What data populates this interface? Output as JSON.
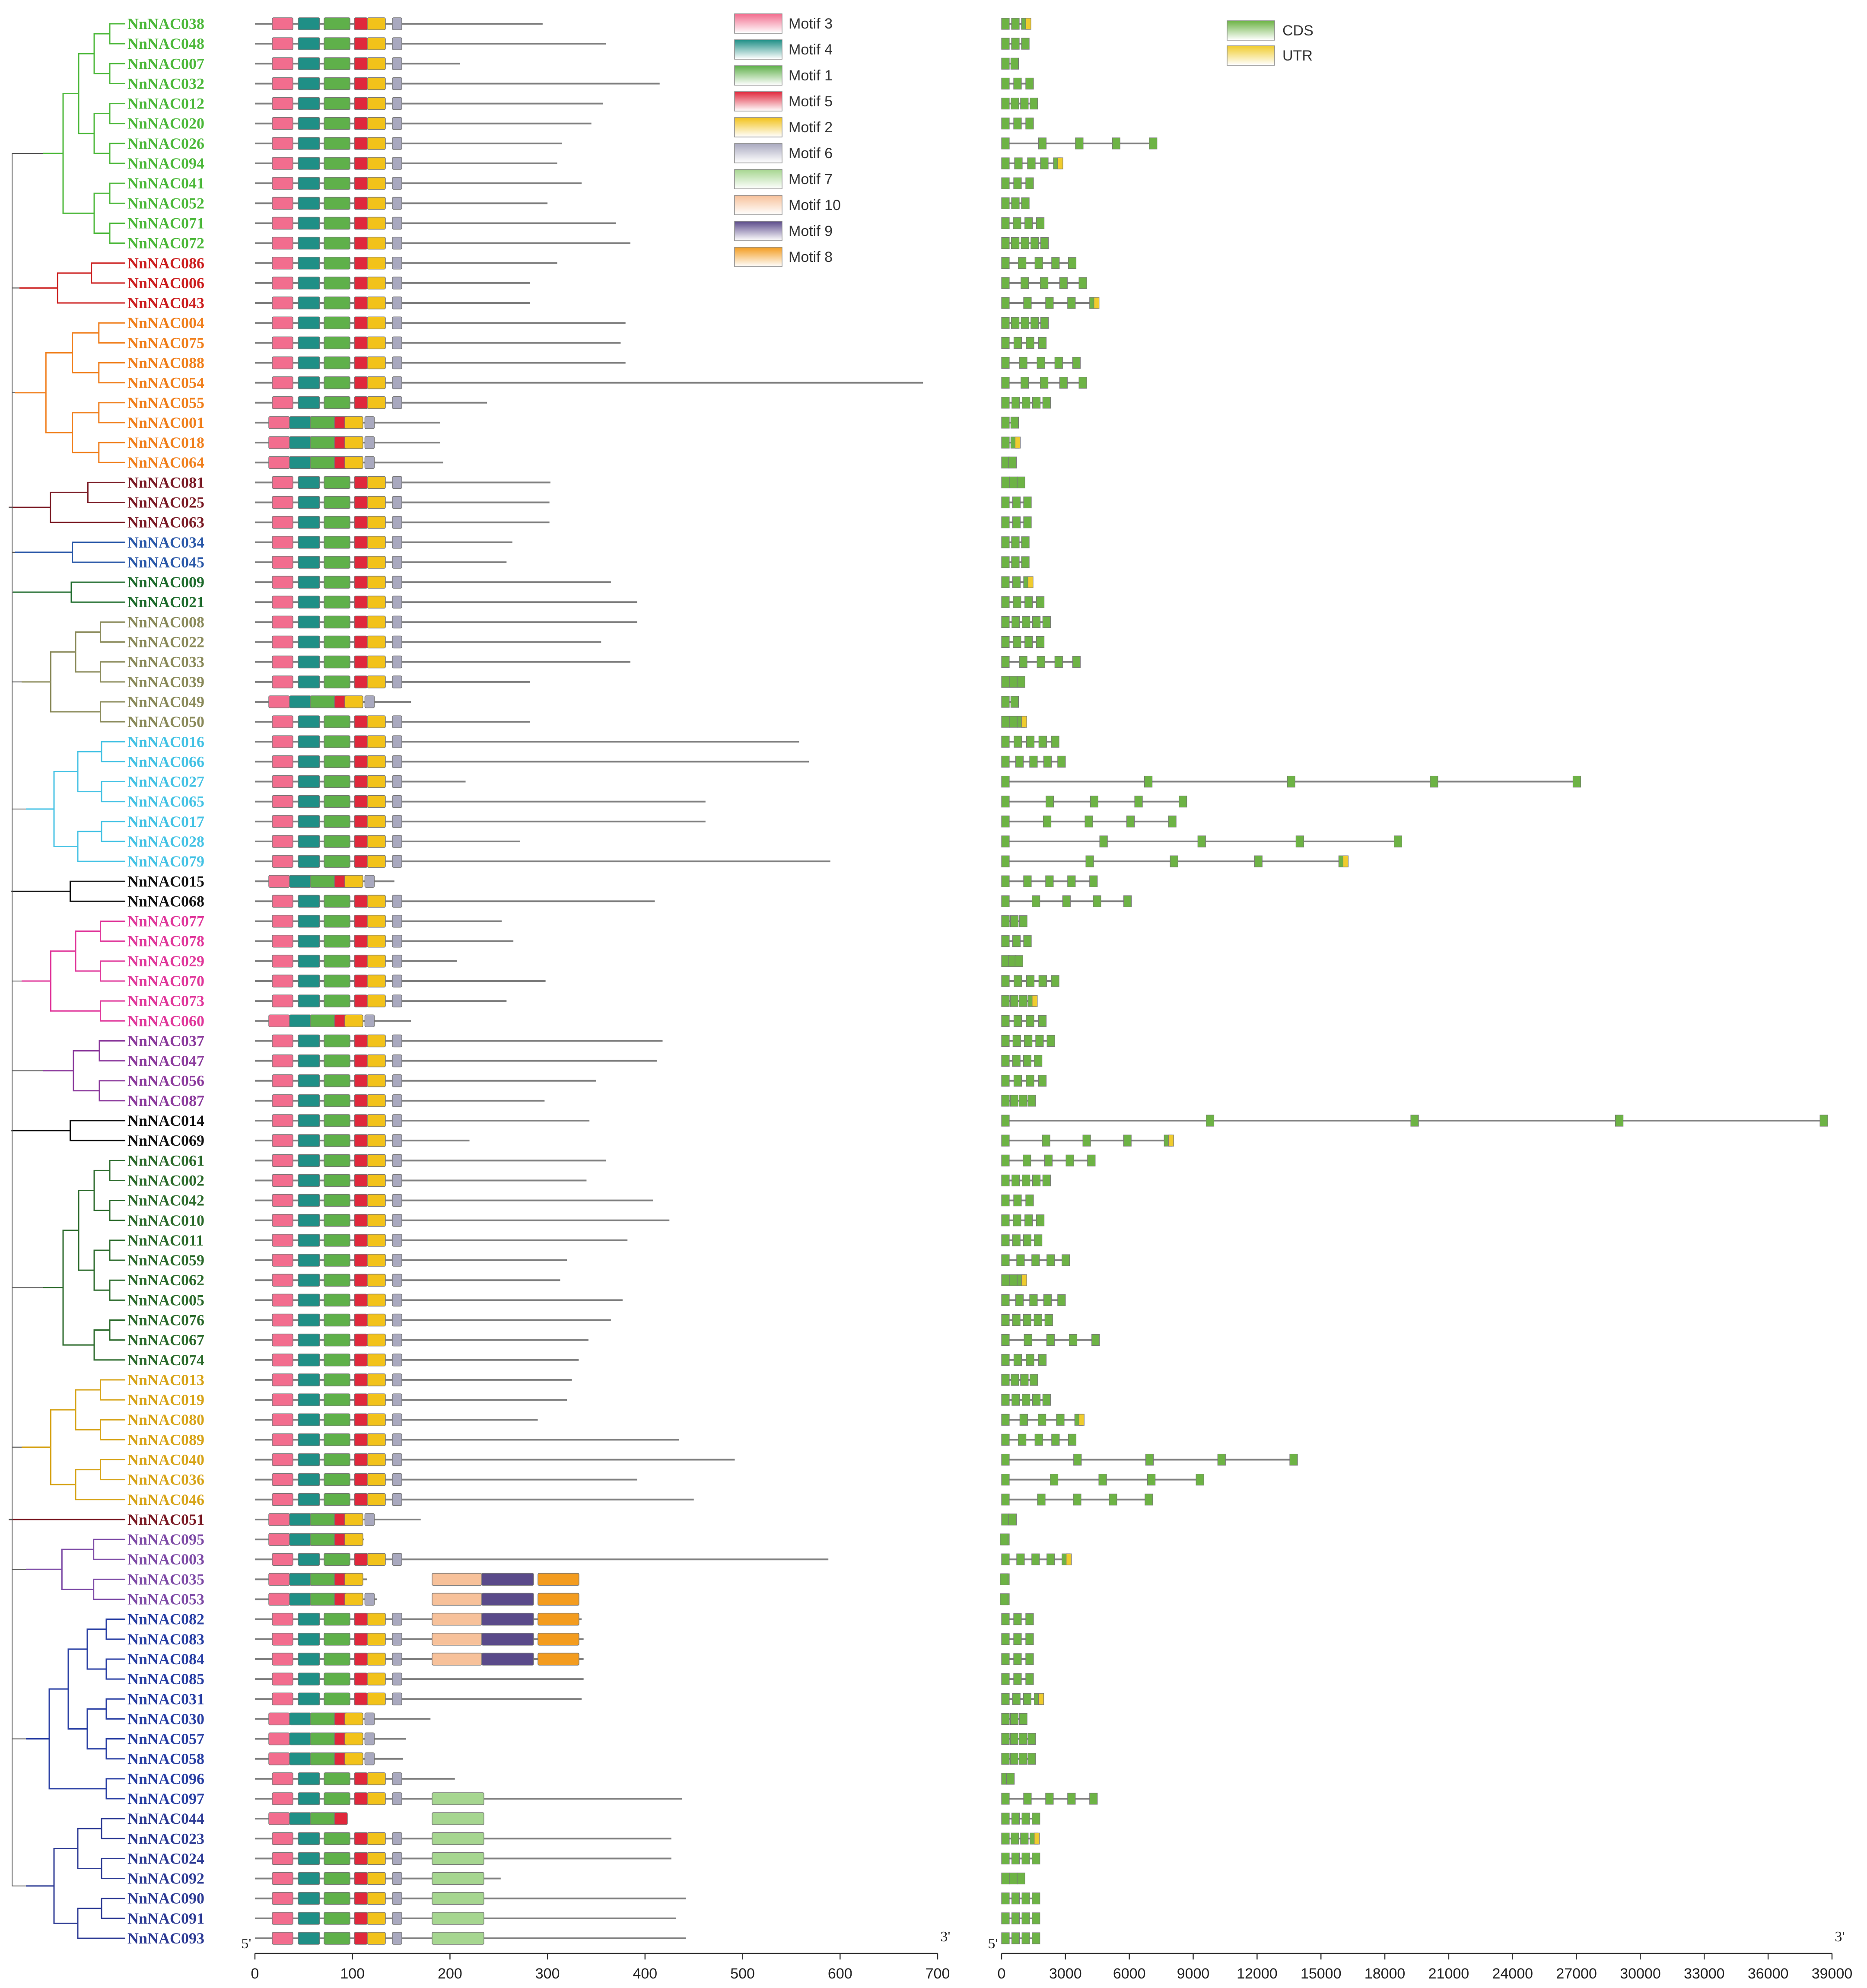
{
  "genes": [
    {
      "name": "NnNAC038",
      "clade": "c1"
    },
    {
      "name": "NnNAC048",
      "clade": "c1"
    },
    {
      "name": "NnNAC007",
      "clade": "c1"
    },
    {
      "name": "NnNAC032",
      "clade": "c1"
    },
    {
      "name": "NnNAC012",
      "clade": "c1"
    },
    {
      "name": "NnNAC020",
      "clade": "c1"
    },
    {
      "name": "NnNAC026",
      "clade": "c1"
    },
    {
      "name": "NnNAC094",
      "clade": "c1"
    },
    {
      "name": "NnNAC041",
      "clade": "c1"
    },
    {
      "name": "NnNAC052",
      "clade": "c1"
    },
    {
      "name": "NnNAC071",
      "clade": "c1"
    },
    {
      "name": "NnNAC072",
      "clade": "c1"
    },
    {
      "name": "NnNAC086",
      "clade": "c2"
    },
    {
      "name": "NnNAC006",
      "clade": "c2"
    },
    {
      "name": "NnNAC043",
      "clade": "c2"
    },
    {
      "name": "NnNAC004",
      "clade": "c3"
    },
    {
      "name": "NnNAC075",
      "clade": "c3"
    },
    {
      "name": "NnNAC088",
      "clade": "c3"
    },
    {
      "name": "NnNAC054",
      "clade": "c3"
    },
    {
      "name": "NnNAC055",
      "clade": "c3"
    },
    {
      "name": "NnNAC001",
      "clade": "c3"
    },
    {
      "name": "NnNAC018",
      "clade": "c3"
    },
    {
      "name": "NnNAC064",
      "clade": "c3"
    },
    {
      "name": "NnNAC081",
      "clade": "c4"
    },
    {
      "name": "NnNAC025",
      "clade": "c4"
    },
    {
      "name": "NnNAC063",
      "clade": "c4"
    },
    {
      "name": "NnNAC034",
      "clade": "c5"
    },
    {
      "name": "NnNAC045",
      "clade": "c5"
    },
    {
      "name": "NnNAC009",
      "clade": "c6"
    },
    {
      "name": "NnNAC021",
      "clade": "c6"
    },
    {
      "name": "NnNAC008",
      "clade": "c7"
    },
    {
      "name": "NnNAC022",
      "clade": "c7"
    },
    {
      "name": "NnNAC033",
      "clade": "c7"
    },
    {
      "name": "NnNAC039",
      "clade": "c7"
    },
    {
      "name": "NnNAC049",
      "clade": "c7"
    },
    {
      "name": "NnNAC050",
      "clade": "c7"
    },
    {
      "name": "NnNAC016",
      "clade": "c8"
    },
    {
      "name": "NnNAC066",
      "clade": "c8"
    },
    {
      "name": "NnNAC027",
      "clade": "c8"
    },
    {
      "name": "NnNAC065",
      "clade": "c8"
    },
    {
      "name": "NnNAC017",
      "clade": "c8"
    },
    {
      "name": "NnNAC028",
      "clade": "c8"
    },
    {
      "name": "NnNAC079",
      "clade": "c8"
    },
    {
      "name": "NnNAC015",
      "clade": "c9"
    },
    {
      "name": "NnNAC068",
      "clade": "c9"
    },
    {
      "name": "NnNAC077",
      "clade": "c10"
    },
    {
      "name": "NnNAC078",
      "clade": "c10"
    },
    {
      "name": "NnNAC029",
      "clade": "c10"
    },
    {
      "name": "NnNAC070",
      "clade": "c10"
    },
    {
      "name": "NnNAC073",
      "clade": "c10"
    },
    {
      "name": "NnNAC060",
      "clade": "c10"
    },
    {
      "name": "NnNAC037",
      "clade": "c11"
    },
    {
      "name": "NnNAC047",
      "clade": "c11"
    },
    {
      "name": "NnNAC056",
      "clade": "c11"
    },
    {
      "name": "NnNAC087",
      "clade": "c11"
    },
    {
      "name": "NnNAC014",
      "clade": "c9"
    },
    {
      "name": "NnNAC069",
      "clade": "c9"
    },
    {
      "name": "NnNAC061",
      "clade": "c12"
    },
    {
      "name": "NnNAC002",
      "clade": "c12"
    },
    {
      "name": "NnNAC042",
      "clade": "c12"
    },
    {
      "name": "NnNAC010",
      "clade": "c12"
    },
    {
      "name": "NnNAC011",
      "clade": "c12"
    },
    {
      "name": "NnNAC059",
      "clade": "c12"
    },
    {
      "name": "NnNAC062",
      "clade": "c12"
    },
    {
      "name": "NnNAC005",
      "clade": "c12"
    },
    {
      "name": "NnNAC076",
      "clade": "c12"
    },
    {
      "name": "NnNAC067",
      "clade": "c12"
    },
    {
      "name": "NnNAC074",
      "clade": "c12"
    },
    {
      "name": "NnNAC013",
      "clade": "c13"
    },
    {
      "name": "NnNAC019",
      "clade": "c13"
    },
    {
      "name": "NnNAC080",
      "clade": "c13"
    },
    {
      "name": "NnNAC089",
      "clade": "c13"
    },
    {
      "name": "NnNAC040",
      "clade": "c13"
    },
    {
      "name": "NnNAC036",
      "clade": "c13"
    },
    {
      "name": "NnNAC046",
      "clade": "c13"
    },
    {
      "name": "NnNAC051",
      "clade": "c4"
    },
    {
      "name": "NnNAC095",
      "clade": "c14"
    },
    {
      "name": "NnNAC003",
      "clade": "c14"
    },
    {
      "name": "NnNAC035",
      "clade": "c14"
    },
    {
      "name": "NnNAC053",
      "clade": "c14"
    },
    {
      "name": "NnNAC082",
      "clade": "c15"
    },
    {
      "name": "NnNAC083",
      "clade": "c15"
    },
    {
      "name": "NnNAC084",
      "clade": "c15"
    },
    {
      "name": "NnNAC085",
      "clade": "c15"
    },
    {
      "name": "NnNAC031",
      "clade": "c15"
    },
    {
      "name": "NnNAC030",
      "clade": "c15"
    },
    {
      "name": "NnNAC057",
      "clade": "c15"
    },
    {
      "name": "NnNAC058",
      "clade": "c15"
    },
    {
      "name": "NnNAC096",
      "clade": "c15"
    },
    {
      "name": "NnNAC097",
      "clade": "c15"
    },
    {
      "name": "NnNAC044",
      "clade": "c16"
    },
    {
      "name": "NnNAC023",
      "clade": "c16"
    },
    {
      "name": "NnNAC024",
      "clade": "c16"
    },
    {
      "name": "NnNAC092",
      "clade": "c16"
    },
    {
      "name": "NnNAC090",
      "clade": "c16"
    },
    {
      "name": "NnNAC091",
      "clade": "c16"
    },
    {
      "name": "NnNAC093",
      "clade": "c16"
    }
  ],
  "clade_colors": {
    "c1": "#4cb83a",
    "c2": "#cc1f1f",
    "c3": "#f07f1c",
    "c4": "#7a1a24",
    "c5": "#2a58a8",
    "c6": "#1e6b2c",
    "c7": "#8a8a5a",
    "c8": "#44c2e4",
    "c9": "#111111",
    "c10": "#e0379a",
    "c11": "#8b3a9c",
    "c12": "#2b6a2b",
    "c13": "#d6a317",
    "c14": "#7d4aa6",
    "c15": "#283ea3",
    "c16": "#2c3a94"
  },
  "motif_legend": [
    {
      "label": "Motif 3",
      "color": "#f26d8e"
    },
    {
      "label": "Motif 4",
      "color": "#1f8f86"
    },
    {
      "label": "Motif 1",
      "color": "#5fb04a"
    },
    {
      "label": "Motif 5",
      "color": "#e0283c"
    },
    {
      "label": "Motif 2",
      "color": "#f2c21a"
    },
    {
      "label": "Motif 6",
      "color": "#a9a9bf"
    },
    {
      "label": "Motif 7",
      "color": "#a6d690"
    },
    {
      "label": "Motif 10",
      "color": "#f7c19a"
    },
    {
      "label": "Motif 9",
      "color": "#5a4a8a"
    },
    {
      "label": "Motif 8",
      "color": "#f39c1f"
    }
  ],
  "gene_legend": [
    {
      "label": "CDS",
      "color": "#6db345"
    },
    {
      "label": "UTR",
      "color": "#f0cc2e"
    }
  ],
  "protein_axis": {
    "max": 700,
    "ticks": [
      "0",
      "100",
      "200",
      "300",
      "400",
      "500",
      "600",
      "700"
    ],
    "start_label": "5'",
    "end_label": "3'"
  },
  "gene_axis": {
    "max": 39000,
    "ticks": [
      "0",
      "3000",
      "6000",
      "9000",
      "12000",
      "15000",
      "18000",
      "21000",
      "24000",
      "27000",
      "30000",
      "33000",
      "36000",
      "39000"
    ],
    "start_label": "5'",
    "end_label": "3'"
  },
  "protein_lengths": [
    295,
    360,
    210,
    415,
    357,
    345,
    315,
    310,
    335,
    300,
    370,
    385,
    310,
    282,
    282,
    380,
    375,
    380,
    685,
    238,
    190,
    190,
    193,
    303,
    302,
    302,
    264,
    258,
    365,
    392,
    392,
    355,
    385,
    282,
    160,
    282,
    558,
    568,
    216,
    462,
    462,
    272,
    590,
    143,
    410,
    253,
    265,
    207,
    298,
    258,
    160,
    418,
    412,
    350,
    297,
    343,
    220,
    360,
    340,
    408,
    425,
    382,
    320,
    313,
    377,
    365,
    342,
    332,
    325,
    320,
    290,
    435,
    492,
    392,
    450,
    170,
    112,
    588,
    115,
    125,
    335,
    337,
    337,
    337,
    335,
    180,
    155,
    152,
    205,
    438,
    95,
    427,
    427,
    252,
    442,
    432,
    442
  ],
  "gene_lengths": [
    1300,
    1300,
    800,
    1500,
    1700,
    1500,
    7300,
    2800,
    1500,
    1300,
    2000,
    2200,
    3500,
    4000,
    4500,
    2200,
    2100,
    3700,
    4000,
    2300,
    800,
    800,
    700,
    1100,
    1400,
    1400,
    1300,
    1300,
    1400,
    2000,
    2300,
    2000,
    3700,
    1100,
    800,
    1100,
    2700,
    3000,
    27200,
    8700,
    8200,
    18800,
    16200,
    4500,
    6100,
    1200,
    1400,
    1000,
    2700,
    1600,
    2100,
    2500,
    1900,
    2100,
    1600,
    38800,
    8000,
    4400,
    2300,
    1500,
    2000,
    1900,
    3200,
    1100,
    3000,
    2400,
    4600,
    2100,
    1700,
    2300,
    3800,
    3500,
    13900,
    9500,
    7100,
    700,
    300,
    3200,
    300,
    300,
    1500,
    1500,
    1500,
    1500,
    1900,
    1200,
    1600,
    1600,
    600,
    4500,
    1800,
    1700,
    1800,
    1100,
    1800,
    1800,
    1800
  ]
}
